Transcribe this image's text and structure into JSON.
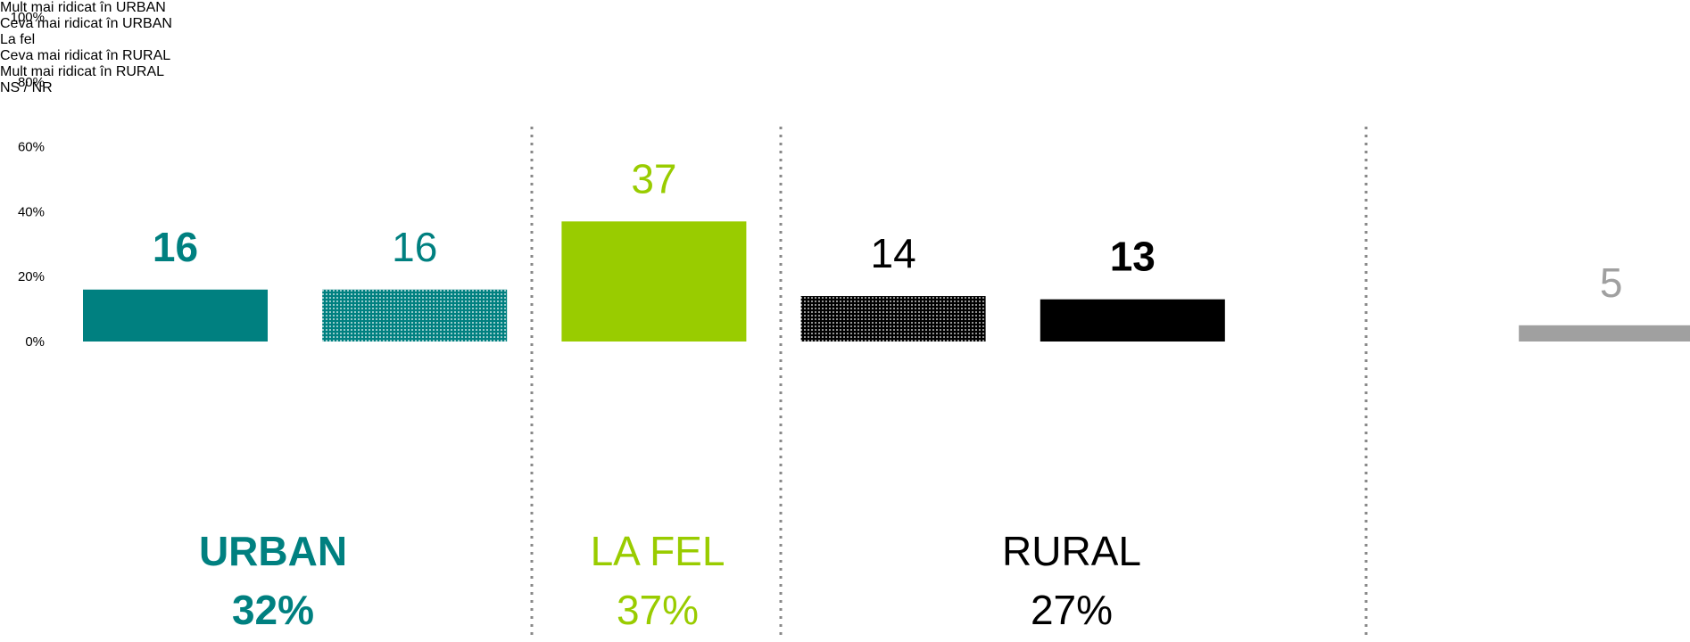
{
  "chart_data": {
    "type": "bar",
    "categories": [
      "Mult mai ridicat\nîn URBAN",
      "Ceva mai ridicat\nîn URBAN",
      "La fel",
      "Ceva mai ridicat\nîn RURAL",
      "Mult mai ridicat\nîn RURAL",
      "NS / NR"
    ],
    "values": [
      16,
      16,
      37,
      14,
      13,
      5
    ],
    "colors": [
      "#008080",
      "#008080",
      "#99cc00",
      "#000000",
      "#000000",
      "#a0a0a0"
    ],
    "fill_styles": [
      "solid",
      "dotted",
      "solid",
      "dotted",
      "solid",
      "solid"
    ],
    "label_bold": [
      true,
      false,
      false,
      false,
      true,
      false
    ],
    "ylim": [
      0,
      100
    ],
    "yticks": [
      {
        "value": 0,
        "label": "0%"
      },
      {
        "value": 20,
        "label": "20%"
      },
      {
        "value": 40,
        "label": "40%"
      },
      {
        "value": 60,
        "label": "60%"
      },
      {
        "value": 80,
        "label": "80%"
      },
      {
        "value": 100,
        "label": "100%"
      }
    ],
    "groups": [
      {
        "title": "URBAN",
        "share": "32%",
        "color": "#008080",
        "bold": true
      },
      {
        "title": "LA FEL",
        "share": "37%",
        "color": "#99cc00",
        "bold": false
      },
      {
        "title": "RURAL",
        "share": "27%",
        "color": "#000000",
        "bold": false
      }
    ]
  }
}
